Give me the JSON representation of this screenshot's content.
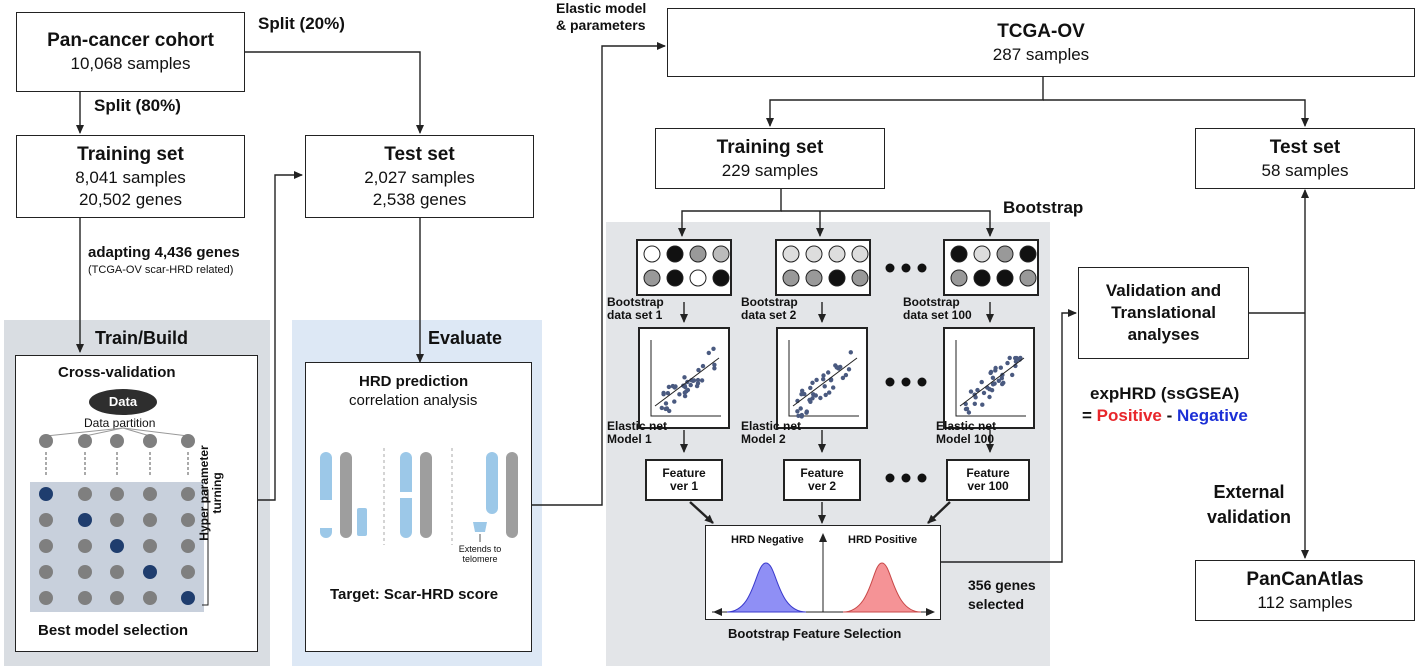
{
  "colors": {
    "arrow": "#222222",
    "panel_train": "#d9dde2",
    "panel_eval": "#dde8f5",
    "panel_boot": "#e3e5e8",
    "positive": "#e8262b",
    "negative": "#1b2fd6",
    "bell_negative": "#8f8ff5",
    "bell_positive": "#f59396",
    "dot": "#7f7f7f",
    "dot_highlight": "#1f3d6e"
  },
  "left": {
    "pancancer": {
      "title": "Pan-cancer cohort",
      "line1": "10,068 samples"
    },
    "split20": "Split (20%)",
    "split80": "Split (80%)",
    "training": {
      "title": "Training set",
      "line1": "8,041 samples",
      "line2": "20,502 genes"
    },
    "test": {
      "title": "Test set",
      "line1": "2,027 samples",
      "line2": "2,538 genes"
    },
    "adapting": "adapting 4,436 genes",
    "adapting_note": "(TCGA-OV  scar-HRD related)",
    "train_build": {
      "title": "Train/Build",
      "cv": "Cross-validation",
      "data": "Data",
      "partition": "Data partition",
      "hyper1": "Hyper parameter",
      "hyper2": "turning",
      "best": "Best model selection"
    },
    "evaluate": {
      "title": "Evaluate",
      "hrd_pred": "HRD prediction",
      "corr": "correlation analysis",
      "extends1": "Extends to",
      "extends2": "telomere",
      "target": "Target: Scar-HRD score"
    }
  },
  "right": {
    "elastic_label1": "Elastic model",
    "elastic_label2": "& parameters",
    "tcga": {
      "title": "TCGA-OV",
      "line1": "287 samples"
    },
    "training": {
      "title": "Training set",
      "line1": "229 samples"
    },
    "test": {
      "title": "Test set",
      "line1": "58 samples"
    },
    "bootstrap": "Bootstrap",
    "columns": [
      {
        "bs1": "Bootstrap",
        "bs2": "data set 1",
        "en1": "Elastic net",
        "en2": "Model 1",
        "f1": "Feature",
        "f2": "ver 1"
      },
      {
        "bs1": "Bootstrap",
        "bs2": "data set 2",
        "en1": "Elastic net",
        "en2": "Model 2",
        "f1": "Feature",
        "f2": "ver 2"
      },
      {
        "bs1": "Bootstrap",
        "bs2": "data set 100",
        "en1": "Elastic net",
        "en2": "Model 100",
        "f1": "Feature",
        "f2": "ver 100"
      }
    ],
    "hrd_negative": "HRD Negative",
    "hrd_positive": "HRD Positive",
    "bfs": "Bootstrap Feature Selection",
    "genes_selected1": "356 genes",
    "genes_selected2": "selected",
    "validation": {
      "l1": "Validation and",
      "l2": "Translational",
      "l3": "analyses"
    },
    "exphrd": "expHRD (ssGSEA)",
    "eq": "= ",
    "positive": "Positive",
    "minus": " - ",
    "negative": "Negative",
    "external1": "External",
    "external2": "validation",
    "pancan": {
      "title": "PanCanAtlas",
      "line1": "112 samples"
    }
  }
}
